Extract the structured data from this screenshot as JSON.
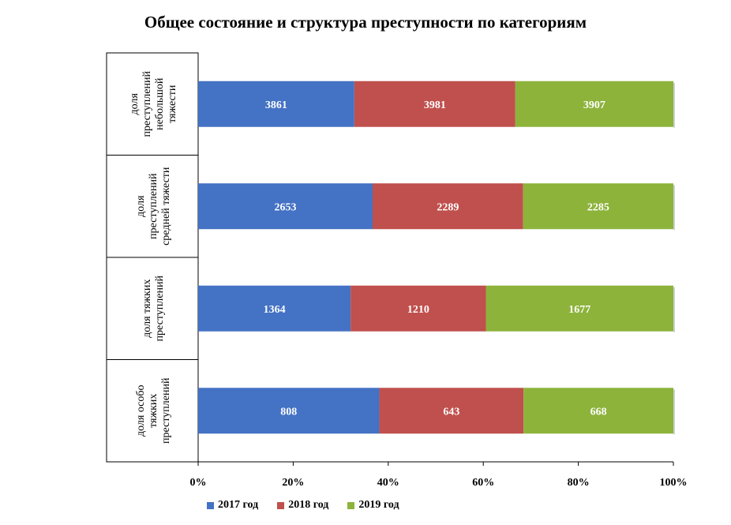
{
  "chart_data": {
    "type": "bar",
    "orientation": "horizontal",
    "stacked": "percent",
    "title": "Общее состояние и структура преступности по категориям",
    "categories": [
      [
        "доля",
        "преступлений",
        "небольшой",
        "тяжести"
      ],
      [
        "доля",
        "преступлений",
        "средней тяжести"
      ],
      [
        "доля тяжких",
        "преступлений"
      ],
      [
        "доля особо",
        "тяжких",
        "преступлений"
      ]
    ],
    "series": [
      {
        "name": "2017 год",
        "color": "#4472C4",
        "values": [
          3861,
          2653,
          1364,
          808
        ]
      },
      {
        "name": "2018 год",
        "color": "#C0504D",
        "values": [
          3981,
          2289,
          1210,
          643
        ]
      },
      {
        "name": "2019 год",
        "color": "#8DB33B",
        "values": [
          3907,
          2285,
          1677,
          668
        ]
      }
    ],
    "xticks": [
      "0%",
      "20%",
      "40%",
      "60%",
      "80%",
      "100%"
    ],
    "xlim": [
      0,
      100
    ],
    "legend_position": "bottom",
    "grid": false
  }
}
